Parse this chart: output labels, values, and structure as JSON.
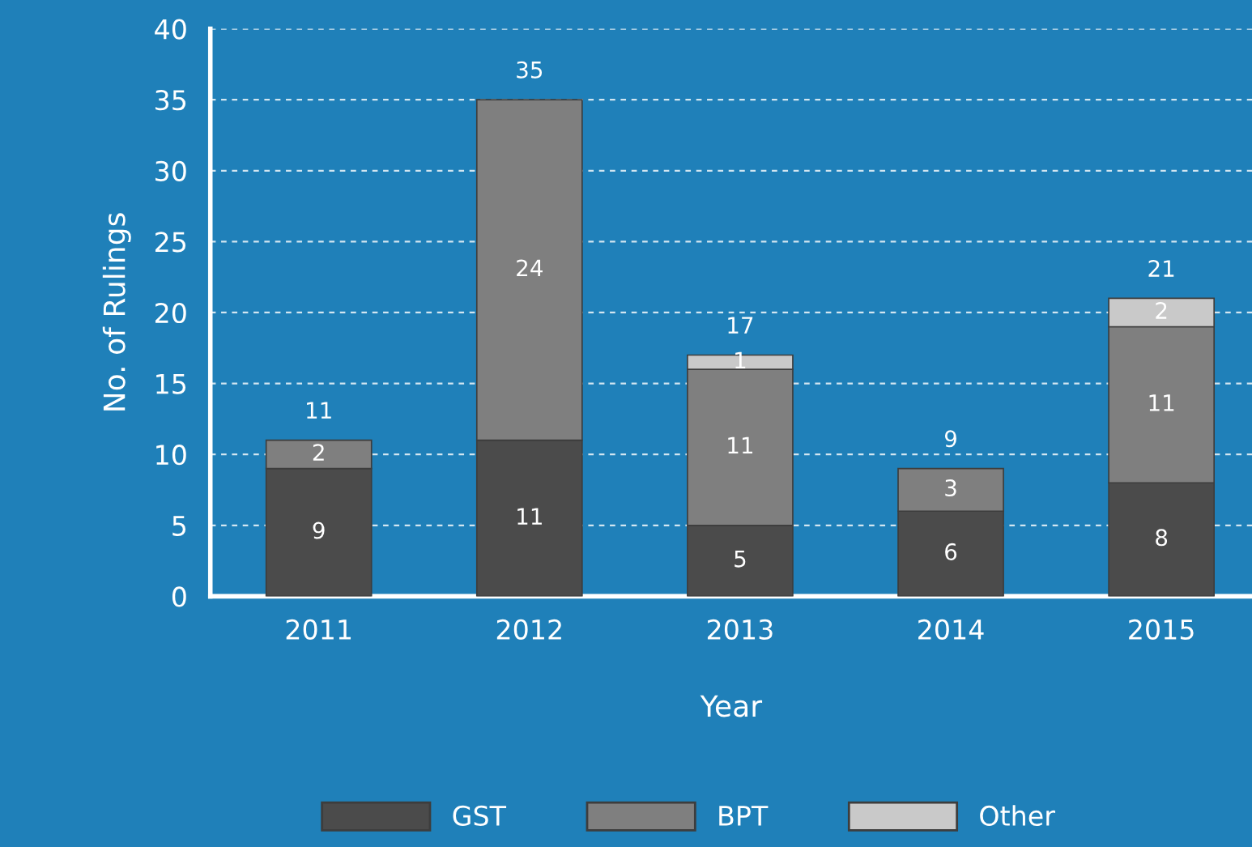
{
  "chart_data": {
    "type": "bar",
    "stacked": true,
    "xlabel": "Year",
    "ylabel": "No. of Rulings",
    "categories": [
      "2011",
      "2012",
      "2013",
      "2014",
      "2015"
    ],
    "series": [
      {
        "name": "GST",
        "color": "#4b4b4b",
        "values": [
          9,
          11,
          5,
          6,
          8
        ]
      },
      {
        "name": "BPT",
        "color": "#7f7f7f",
        "values": [
          2,
          24,
          11,
          3,
          11
        ]
      },
      {
        "name": "Other",
        "color": "#c9c9c9",
        "values": [
          null,
          null,
          1,
          null,
          2
        ]
      }
    ],
    "totals": [
      "11",
      "35",
      "17",
      "9",
      "21"
    ],
    "data_labels": true,
    "ylim": [
      0,
      40
    ],
    "yticks": [
      0,
      5,
      10,
      15,
      20,
      25,
      30,
      35,
      40
    ],
    "grid": "y",
    "legend": "bottom"
  }
}
